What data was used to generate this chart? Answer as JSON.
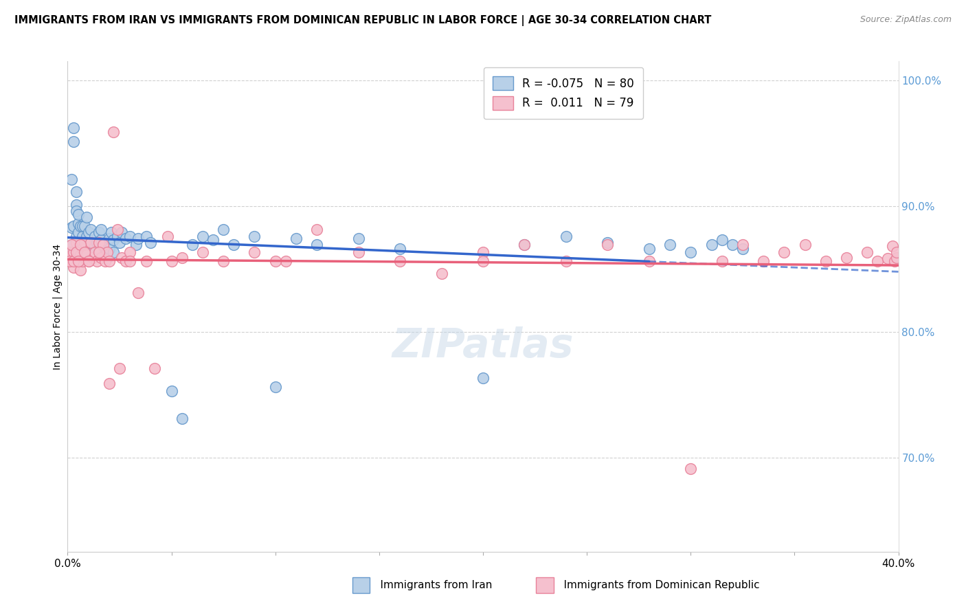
{
  "title": "IMMIGRANTS FROM IRAN VS IMMIGRANTS FROM DOMINICAN REPUBLIC IN LABOR FORCE | AGE 30-34 CORRELATION CHART",
  "source": "Source: ZipAtlas.com",
  "ylabel": "In Labor Force | Age 30-34",
  "xmin": 0.0,
  "xmax": 0.4,
  "ymin": 0.625,
  "ymax": 1.015,
  "iran_R": -0.075,
  "iran_N": 80,
  "dr_R": 0.011,
  "dr_N": 79,
  "iran_color": "#b8d0e8",
  "iran_edge_color": "#6699cc",
  "dr_color": "#f5c0ce",
  "dr_edge_color": "#e8829a",
  "iran_line_color": "#3366cc",
  "dr_line_color": "#e8607a",
  "background_color": "#ffffff",
  "grid_color": "#d0d0d0",
  "right_axis_color": "#5b9bd5",
  "title_fontsize": 10.5,
  "axis_label_fontsize": 10,
  "iran_scatter_x": [
    0.001,
    0.002,
    0.002,
    0.003,
    0.003,
    0.003,
    0.004,
    0.004,
    0.004,
    0.004,
    0.005,
    0.005,
    0.005,
    0.005,
    0.006,
    0.006,
    0.006,
    0.006,
    0.007,
    0.007,
    0.007,
    0.008,
    0.008,
    0.008,
    0.009,
    0.009,
    0.009,
    0.01,
    0.01,
    0.011,
    0.011,
    0.012,
    0.012,
    0.013,
    0.014,
    0.015,
    0.015,
    0.016,
    0.016,
    0.017,
    0.018,
    0.019,
    0.02,
    0.02,
    0.021,
    0.022,
    0.022,
    0.024,
    0.025,
    0.026,
    0.028,
    0.03,
    0.033,
    0.034,
    0.038,
    0.04,
    0.05,
    0.055,
    0.06,
    0.065,
    0.07,
    0.075,
    0.08,
    0.09,
    0.1,
    0.11,
    0.12,
    0.14,
    0.16,
    0.2,
    0.22,
    0.24,
    0.26,
    0.28,
    0.29,
    0.3,
    0.31,
    0.315,
    0.32,
    0.325
  ],
  "iran_scatter_y": [
    0.868,
    0.921,
    0.883,
    0.962,
    0.951,
    0.884,
    0.901,
    0.876,
    0.896,
    0.911,
    0.886,
    0.871,
    0.893,
    0.879,
    0.871,
    0.866,
    0.861,
    0.884,
    0.861,
    0.876,
    0.884,
    0.871,
    0.866,
    0.884,
    0.863,
    0.876,
    0.891,
    0.866,
    0.879,
    0.871,
    0.881,
    0.863,
    0.871,
    0.876,
    0.871,
    0.879,
    0.864,
    0.873,
    0.881,
    0.868,
    0.871,
    0.859,
    0.874,
    0.866,
    0.879,
    0.863,
    0.873,
    0.876,
    0.871,
    0.879,
    0.874,
    0.876,
    0.869,
    0.874,
    0.876,
    0.871,
    0.753,
    0.731,
    0.869,
    0.876,
    0.873,
    0.881,
    0.869,
    0.876,
    0.756,
    0.874,
    0.869,
    0.874,
    0.866,
    0.763,
    0.869,
    0.876,
    0.871,
    0.866,
    0.869,
    0.863,
    0.869,
    0.873,
    0.869,
    0.866
  ],
  "dr_scatter_x": [
    0.001,
    0.002,
    0.003,
    0.003,
    0.004,
    0.004,
    0.005,
    0.005,
    0.006,
    0.006,
    0.007,
    0.007,
    0.008,
    0.008,
    0.009,
    0.01,
    0.011,
    0.012,
    0.013,
    0.014,
    0.015,
    0.016,
    0.017,
    0.018,
    0.019,
    0.02,
    0.022,
    0.024,
    0.026,
    0.028,
    0.03,
    0.034,
    0.038,
    0.042,
    0.048,
    0.055,
    0.065,
    0.075,
    0.09,
    0.105,
    0.12,
    0.14,
    0.16,
    0.18,
    0.2,
    0.22,
    0.24,
    0.26,
    0.28,
    0.3,
    0.315,
    0.325,
    0.335,
    0.345,
    0.355,
    0.365,
    0.375,
    0.385,
    0.39,
    0.395,
    0.397,
    0.398,
    0.399,
    0.399,
    0.001,
    0.002,
    0.003,
    0.004,
    0.005,
    0.006,
    0.008,
    0.01,
    0.015,
    0.02,
    0.025,
    0.03,
    0.05,
    0.1,
    0.2
  ],
  "dr_scatter_y": [
    0.863,
    0.856,
    0.851,
    0.863,
    0.859,
    0.871,
    0.863,
    0.856,
    0.861,
    0.849,
    0.866,
    0.856,
    0.859,
    0.871,
    0.861,
    0.856,
    0.871,
    0.859,
    0.863,
    0.856,
    0.871,
    0.859,
    0.869,
    0.856,
    0.863,
    0.759,
    0.959,
    0.881,
    0.859,
    0.856,
    0.863,
    0.831,
    0.856,
    0.771,
    0.876,
    0.859,
    0.863,
    0.856,
    0.863,
    0.856,
    0.881,
    0.863,
    0.856,
    0.846,
    0.863,
    0.869,
    0.856,
    0.869,
    0.856,
    0.691,
    0.856,
    0.869,
    0.856,
    0.863,
    0.869,
    0.856,
    0.859,
    0.863,
    0.856,
    0.858,
    0.868,
    0.856,
    0.859,
    0.863,
    0.856,
    0.869,
    0.856,
    0.863,
    0.856,
    0.869,
    0.863,
    0.856,
    0.863,
    0.856,
    0.771,
    0.856,
    0.856,
    0.856,
    0.856
  ]
}
